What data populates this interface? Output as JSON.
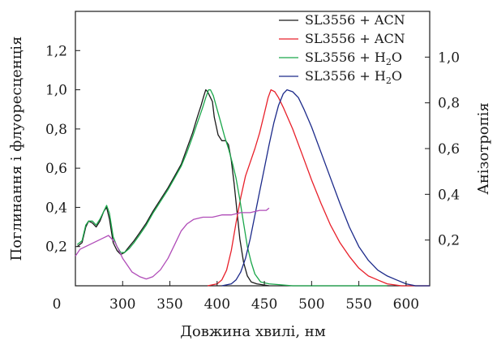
{
  "chart_data": {
    "type": "line",
    "xlabel": "Довжина хвилі, нм",
    "ylabel_left": "Поглинання і флуоресценція",
    "ylabel_right": "Анізотропія",
    "xlim": [
      250,
      625
    ],
    "ylim_left": [
      0,
      1.4
    ],
    "ylim_right": [
      0,
      1.2
    ],
    "x_ticks": [
      "0",
      "300",
      "350",
      "400",
      "450",
      "500",
      "550",
      "600"
    ],
    "x_tick_values": [
      250,
      300,
      350,
      400,
      450,
      500,
      550,
      600
    ],
    "y_ticks_left": [
      "0,2",
      "0,4",
      "0,6",
      "0,8",
      "1,0",
      "1,2"
    ],
    "y_tick_values_left": [
      0.2,
      0.4,
      0.6,
      0.8,
      1.0,
      1.2
    ],
    "y_ticks_right": [
      "0,2",
      "0,4",
      "0,6",
      "0,8",
      "1,0"
    ],
    "y_tick_values_right": [
      0.2,
      0.4,
      0.6,
      0.8,
      1.0
    ],
    "legend_position": "top-right",
    "legend": [
      {
        "label": "SL3556 + ACN",
        "color": "#1a1a1a"
      },
      {
        "label": "SL3556 + ACN",
        "color": "#e8202a"
      },
      {
        "label_main": "SL3556 + H",
        "label_sub": "2",
        "label_end": "O",
        "color": "#1aa64a"
      },
      {
        "label_main": "SL3556 + H",
        "label_sub": "2",
        "label_end": "O",
        "color": "#1c2a8a"
      }
    ],
    "series": [
      {
        "color": "#1a1a1a",
        "axis": "left",
        "points": [
          [
            252,
            0.2
          ],
          [
            257,
            0.22
          ],
          [
            261,
            0.3
          ],
          [
            264,
            0.33
          ],
          [
            268,
            0.32
          ],
          [
            272,
            0.3
          ],
          [
            276,
            0.33
          ],
          [
            280,
            0.38
          ],
          [
            283,
            0.4
          ],
          [
            286,
            0.34
          ],
          [
            290,
            0.22
          ],
          [
            294,
            0.18
          ],
          [
            298,
            0.16
          ],
          [
            302,
            0.17
          ],
          [
            307,
            0.2
          ],
          [
            312,
            0.23
          ],
          [
            318,
            0.27
          ],
          [
            325,
            0.32
          ],
          [
            332,
            0.38
          ],
          [
            340,
            0.44
          ],
          [
            348,
            0.5
          ],
          [
            355,
            0.56
          ],
          [
            362,
            0.62
          ],
          [
            368,
            0.7
          ],
          [
            374,
            0.78
          ],
          [
            379,
            0.86
          ],
          [
            383,
            0.92
          ],
          [
            386,
            0.97
          ],
          [
            388,
            1.0
          ],
          [
            390,
            0.99
          ],
          [
            393,
            0.96
          ],
          [
            395,
            0.94
          ],
          [
            397,
            0.86
          ],
          [
            401,
            0.77
          ],
          [
            405,
            0.74
          ],
          [
            409,
            0.74
          ],
          [
            412,
            0.72
          ],
          [
            415,
            0.64
          ],
          [
            418,
            0.52
          ],
          [
            421,
            0.38
          ],
          [
            424,
            0.24
          ],
          [
            428,
            0.12
          ],
          [
            432,
            0.05
          ],
          [
            436,
            0.02
          ],
          [
            442,
            0.01
          ],
          [
            455,
            0.0
          ]
        ]
      },
      {
        "color": "#e8202a",
        "axis": "left",
        "points": [
          [
            390,
            0.0
          ],
          [
            400,
            0.01
          ],
          [
            405,
            0.03
          ],
          [
            410,
            0.08
          ],
          [
            415,
            0.18
          ],
          [
            420,
            0.32
          ],
          [
            425,
            0.45
          ],
          [
            430,
            0.56
          ],
          [
            435,
            0.63
          ],
          [
            440,
            0.7
          ],
          [
            445,
            0.78
          ],
          [
            450,
            0.88
          ],
          [
            454,
            0.96
          ],
          [
            457,
            1.0
          ],
          [
            461,
            0.99
          ],
          [
            465,
            0.96
          ],
          [
            470,
            0.91
          ],
          [
            480,
            0.8
          ],
          [
            490,
            0.67
          ],
          [
            500,
            0.54
          ],
          [
            510,
            0.42
          ],
          [
            520,
            0.31
          ],
          [
            530,
            0.22
          ],
          [
            540,
            0.15
          ],
          [
            550,
            0.09
          ],
          [
            560,
            0.05
          ],
          [
            570,
            0.03
          ],
          [
            580,
            0.01
          ],
          [
            595,
            0.0
          ],
          [
            625,
            0.0
          ]
        ]
      },
      {
        "color": "#1aa64a",
        "axis": "left",
        "points": [
          [
            252,
            0.21
          ],
          [
            257,
            0.23
          ],
          [
            261,
            0.31
          ],
          [
            264,
            0.33
          ],
          [
            268,
            0.33
          ],
          [
            272,
            0.31
          ],
          [
            276,
            0.34
          ],
          [
            280,
            0.38
          ],
          [
            283,
            0.41
          ],
          [
            286,
            0.37
          ],
          [
            290,
            0.25
          ],
          [
            294,
            0.2
          ],
          [
            298,
            0.17
          ],
          [
            302,
            0.17
          ],
          [
            307,
            0.19
          ],
          [
            312,
            0.22
          ],
          [
            318,
            0.26
          ],
          [
            325,
            0.31
          ],
          [
            332,
            0.37
          ],
          [
            340,
            0.43
          ],
          [
            348,
            0.49
          ],
          [
            355,
            0.55
          ],
          [
            362,
            0.61
          ],
          [
            368,
            0.68
          ],
          [
            374,
            0.76
          ],
          [
            379,
            0.83
          ],
          [
            384,
            0.9
          ],
          [
            388,
            0.96
          ],
          [
            391,
            1.0
          ],
          [
            393,
            1.0
          ],
          [
            396,
            0.97
          ],
          [
            400,
            0.9
          ],
          [
            404,
            0.83
          ],
          [
            408,
            0.76
          ],
          [
            412,
            0.7
          ],
          [
            416,
            0.63
          ],
          [
            420,
            0.55
          ],
          [
            424,
            0.44
          ],
          [
            428,
            0.32
          ],
          [
            432,
            0.2
          ],
          [
            436,
            0.12
          ],
          [
            440,
            0.06
          ],
          [
            446,
            0.02
          ],
          [
            455,
            0.01
          ],
          [
            480,
            0.0
          ],
          [
            580,
            0.0
          ]
        ]
      },
      {
        "color": "#1c2a8a",
        "axis": "left",
        "points": [
          [
            405,
            0.0
          ],
          [
            415,
            0.01
          ],
          [
            420,
            0.03
          ],
          [
            425,
            0.07
          ],
          [
            430,
            0.14
          ],
          [
            435,
            0.24
          ],
          [
            440,
            0.36
          ],
          [
            445,
            0.48
          ],
          [
            450,
            0.6
          ],
          [
            455,
            0.72
          ],
          [
            460,
            0.83
          ],
          [
            465,
            0.92
          ],
          [
            470,
            0.98
          ],
          [
            474,
            1.0
          ],
          [
            480,
            0.99
          ],
          [
            486,
            0.96
          ],
          [
            492,
            0.9
          ],
          [
            500,
            0.81
          ],
          [
            510,
            0.68
          ],
          [
            520,
            0.55
          ],
          [
            530,
            0.42
          ],
          [
            540,
            0.3
          ],
          [
            550,
            0.2
          ],
          [
            560,
            0.13
          ],
          [
            570,
            0.08
          ],
          [
            580,
            0.05
          ],
          [
            590,
            0.03
          ],
          [
            600,
            0.01
          ],
          [
            610,
            0.0
          ],
          [
            625,
            0.0
          ]
        ]
      },
      {
        "color": "#b04cb8",
        "axis": "right",
        "points": [
          [
            250,
            0.13
          ],
          [
            255,
            0.16
          ],
          [
            265,
            0.18
          ],
          [
            275,
            0.2
          ],
          [
            285,
            0.22
          ],
          [
            292,
            0.19
          ],
          [
            300,
            0.12
          ],
          [
            305,
            0.09
          ],
          [
            310,
            0.06
          ],
          [
            318,
            0.04
          ],
          [
            325,
            0.03
          ],
          [
            332,
            0.04
          ],
          [
            340,
            0.07
          ],
          [
            348,
            0.12
          ],
          [
            355,
            0.18
          ],
          [
            362,
            0.24
          ],
          [
            368,
            0.27
          ],
          [
            375,
            0.29
          ],
          [
            385,
            0.3
          ],
          [
            395,
            0.3
          ],
          [
            405,
            0.31
          ],
          [
            415,
            0.31
          ],
          [
            425,
            0.32
          ],
          [
            435,
            0.32
          ],
          [
            445,
            0.33
          ],
          [
            452,
            0.33
          ],
          [
            455,
            0.34
          ]
        ]
      }
    ]
  }
}
